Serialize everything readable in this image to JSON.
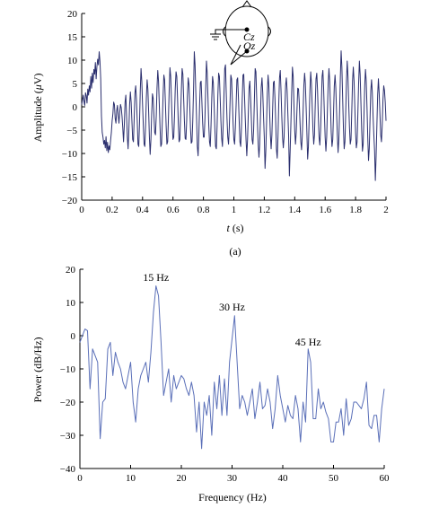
{
  "chart_data": [
    {
      "type": "line",
      "panel_label": "(a)",
      "xlabel_var": "t",
      "xlabel_unit": "(s)",
      "ylabel_text": "Amplitude (",
      "ylabel_mu": "μ",
      "ylabel_unit": "V)",
      "xlim": [
        0,
        2
      ],
      "ylim": [
        -20,
        20
      ],
      "xticks": [
        0,
        0.2,
        0.4,
        0.6,
        0.8,
        1,
        1.2,
        1.4,
        1.6,
        1.8,
        2
      ],
      "xtick_labels": [
        "0",
        "0.2",
        "0.4",
        "0.6",
        "0.8",
        "1",
        "1.2",
        "1.4",
        "1.6",
        "1.8",
        "2"
      ],
      "yticks": [
        -20,
        -15,
        -10,
        -5,
        0,
        5,
        10,
        15,
        20
      ],
      "ytick_labels": [
        "−20",
        "−15",
        "−10",
        "−5",
        "0",
        "5",
        "10",
        "15",
        "20"
      ],
      "grid": false,
      "line_color": "#2b2f6e",
      "inset": {
        "electrode_top": "Cz",
        "electrode_bottom": "Oz"
      },
      "x": [
        0.0,
        0.005,
        0.01,
        0.015,
        0.02,
        0.025,
        0.03,
        0.035,
        0.04,
        0.045,
        0.05,
        0.055,
        0.06,
        0.065,
        0.07,
        0.075,
        0.08,
        0.085,
        0.09,
        0.095,
        0.1,
        0.105,
        0.11,
        0.115,
        0.12,
        0.125,
        0.13,
        0.135,
        0.14,
        0.145,
        0.15,
        0.155,
        0.16,
        0.165,
        0.17,
        0.175,
        0.18,
        0.185,
        0.19,
        0.195,
        0.2,
        0.205,
        0.21,
        0.215,
        0.22,
        0.225,
        0.23,
        0.235,
        0.24,
        0.245,
        0.25,
        0.255,
        0.26,
        0.265,
        0.27,
        0.275,
        0.28,
        0.285,
        0.29,
        0.295,
        0.3,
        0.305,
        0.31,
        0.315,
        0.32,
        0.325,
        0.33,
        0.335,
        0.34,
        0.345,
        0.35,
        0.355,
        0.36,
        0.365,
        0.37,
        0.375,
        0.38,
        0.385,
        0.39,
        0.395,
        0.4,
        0.405,
        0.41,
        0.415,
        0.42,
        0.425,
        0.43,
        0.435,
        0.44,
        0.445,
        0.45,
        0.455,
        0.46,
        0.465,
        0.47,
        0.475,
        0.48,
        0.485,
        0.49,
        0.495,
        0.5,
        0.505,
        0.51,
        0.515,
        0.52,
        0.525,
        0.53,
        0.535,
        0.54,
        0.545,
        0.55,
        0.555,
        0.56,
        0.565,
        0.57,
        0.575,
        0.58,
        0.585,
        0.59,
        0.595,
        0.6,
        0.605,
        0.61,
        0.615,
        0.62,
        0.625,
        0.63,
        0.635,
        0.64,
        0.645,
        0.65,
        0.655,
        0.66,
        0.665,
        0.67,
        0.675,
        0.68,
        0.685,
        0.69,
        0.695,
        0.7,
        0.705,
        0.71,
        0.715,
        0.72,
        0.725,
        0.73,
        0.735,
        0.74,
        0.745,
        0.75,
        0.755,
        0.76,
        0.765,
        0.77,
        0.775,
        0.78,
        0.785,
        0.79,
        0.795,
        0.8,
        0.805,
        0.81,
        0.815,
        0.82,
        0.825,
        0.83,
        0.835,
        0.84,
        0.845,
        0.85,
        0.855,
        0.86,
        0.865,
        0.87,
        0.875,
        0.88,
        0.885,
        0.89,
        0.895,
        0.9,
        0.905,
        0.91,
        0.915,
        0.92,
        0.925,
        0.93,
        0.935,
        0.94,
        0.945,
        0.95,
        0.955,
        0.96,
        0.965,
        0.97,
        0.975,
        0.98,
        0.985,
        0.99,
        0.995,
        1.0,
        1.005,
        1.01,
        1.015,
        1.02,
        1.025,
        1.03,
        1.035,
        1.04,
        1.045,
        1.05,
        1.055,
        1.06,
        1.065,
        1.07,
        1.075,
        1.08,
        1.085,
        1.09,
        1.095,
        1.1,
        1.105,
        1.11,
        1.115,
        1.12,
        1.125,
        1.13,
        1.135,
        1.14,
        1.145,
        1.15,
        1.155,
        1.16,
        1.165,
        1.17,
        1.175,
        1.18,
        1.185,
        1.19,
        1.195,
        1.2,
        1.205,
        1.21,
        1.215,
        1.22,
        1.225,
        1.23,
        1.235,
        1.24,
        1.245,
        1.25,
        1.255,
        1.26,
        1.265,
        1.27,
        1.275,
        1.28,
        1.285,
        1.29,
        1.295,
        1.3,
        1.305,
        1.31,
        1.315,
        1.32,
        1.325,
        1.33,
        1.335,
        1.34,
        1.345,
        1.35,
        1.355,
        1.36,
        1.365,
        1.37,
        1.375,
        1.38,
        1.385,
        1.39,
        1.395,
        1.4,
        1.405,
        1.41,
        1.415,
        1.42,
        1.425,
        1.43,
        1.435,
        1.44,
        1.445,
        1.45,
        1.455,
        1.46,
        1.465,
        1.47,
        1.475,
        1.48,
        1.485,
        1.49,
        1.495,
        1.5,
        1.505,
        1.51,
        1.515,
        1.52,
        1.525,
        1.53,
        1.535,
        1.54,
        1.545,
        1.55,
        1.555,
        1.56,
        1.565,
        1.57,
        1.575,
        1.58,
        1.585,
        1.59,
        1.595,
        1.6,
        1.605,
        1.61,
        1.615,
        1.62,
        1.625,
        1.63,
        1.635,
        1.64,
        1.645,
        1.65,
        1.655,
        1.66,
        1.665,
        1.67,
        1.675,
        1.68,
        1.685,
        1.69,
        1.695,
        1.7,
        1.705,
        1.71,
        1.715,
        1.72,
        1.725,
        1.73,
        1.735,
        1.74,
        1.745,
        1.75,
        1.755,
        1.76,
        1.765,
        1.77,
        1.775,
        1.78,
        1.785,
        1.79,
        1.795,
        1.8,
        1.805,
        1.81,
        1.815,
        1.82,
        1.825,
        1.83,
        1.835,
        1.84,
        1.845,
        1.85,
        1.855,
        1.86,
        1.865,
        1.87,
        1.875,
        1.88,
        1.885,
        1.89,
        1.895,
        1.9,
        1.905,
        1.91,
        1.915,
        1.92,
        1.925,
        1.93,
        1.935,
        1.94,
        1.945,
        1.95,
        1.955,
        1.96,
        1.965,
        1.97,
        1.975,
        1.98,
        1.985,
        1.99,
        1.995,
        2.0
      ],
      "y": [
        0.5,
        1.5,
        2.5,
        1.2,
        0.3,
        3.0,
        2.4,
        0.8,
        3.8,
        2.5,
        4.5,
        3.2,
        6.5,
        4.0,
        7.2,
        5.2,
        8.0,
        7.0,
        9.5,
        6.0,
        8.6,
        10.2,
        9.0,
        11.8,
        9.8,
        6.0,
        -2.0,
        -5.5,
        -6.5,
        -8.0,
        -7.2,
        -8.8,
        -6.4,
        -9.4,
        -7.6,
        -9.8,
        -8.4,
        -9.2,
        -7.2,
        -5.5,
        -3.0,
        -1.5,
        1.0,
        0.5,
        -2.5,
        -3.5,
        -0.8,
        0.3,
        -1.8,
        -3.5,
        -1.2,
        0.5,
        -0.2,
        -2.0,
        -4.5,
        -7.5,
        -4.0,
        1.0,
        2.5,
        -2.0,
        -6.5,
        -9.0,
        -5.0,
        0.5,
        3.2,
        1.0,
        -3.0,
        -7.0,
        -7.5,
        -2.5,
        3.0,
        4.5,
        1.5,
        -3.0,
        -8.0,
        -8.5,
        -3.5,
        3.5,
        8.2,
        5.5,
        0.5,
        -4.0,
        -8.0,
        -8.5,
        -4.0,
        2.0,
        5.8,
        3.8,
        -1.0,
        -6.5,
        -10.2,
        -7.0,
        -1.5,
        2.8,
        1.8,
        -2.0,
        -5.5,
        -6.0,
        -2.0,
        4.0,
        7.8,
        5.5,
        0.5,
        -4.5,
        -8.5,
        -8.0,
        -3.0,
        2.5,
        6.8,
        5.8,
        1.0,
        -4.0,
        -8.0,
        -7.5,
        -2.5,
        3.5,
        8.4,
        6.5,
        1.5,
        -3.5,
        -7.0,
        -6.5,
        -2.0,
        4.0,
        7.5,
        6.5,
        1.8,
        -3.5,
        -7.5,
        -7.0,
        -2.0,
        3.5,
        8.2,
        7.0,
        2.0,
        -3.0,
        -6.8,
        -7.0,
        -3.0,
        2.5,
        6.2,
        4.8,
        0.5,
        -4.5,
        -7.8,
        -7.5,
        -3.0,
        3.5,
        11.8,
        9.0,
        3.0,
        -2.5,
        -8.5,
        -10.5,
        -6.0,
        0.5,
        5.2,
        5.5,
        1.0,
        -3.5,
        -6.5,
        -6.5,
        -2.5,
        4.0,
        9.8,
        7.2,
        1.8,
        -3.8,
        -7.5,
        -8.5,
        -4.0,
        2.0,
        6.5,
        5.2,
        0.8,
        -4.5,
        -8.5,
        -9.0,
        -4.0,
        2.5,
        7.2,
        6.5,
        2.0,
        -3.0,
        -6.8,
        -8.5,
        -3.8,
        2.5,
        8.2,
        9.0,
        3.0,
        -2.5,
        -6.5,
        -8.0,
        -4.5,
        1.0,
        6.8,
        6.0,
        1.5,
        -3.5,
        -7.0,
        -8.0,
        -4.5,
        0.5,
        5.8,
        6.2,
        2.0,
        -3.0,
        -7.5,
        -8.5,
        -4.5,
        1.5,
        6.8,
        7.0,
        2.5,
        -2.5,
        -7.0,
        -10.5,
        -7.0,
        -1.5,
        4.0,
        5.5,
        2.0,
        -2.5,
        -7.0,
        -8.0,
        -5.0,
        1.5,
        8.2,
        7.5,
        2.0,
        -3.5,
        -8.0,
        -10.8,
        -8.0,
        -2.0,
        4.2,
        6.2,
        3.0,
        -2.0,
        -6.5,
        -13.2,
        -9.5,
        -3.5,
        3.0,
        6.8,
        4.5,
        -1.0,
        -6.0,
        -9.0,
        -6.0,
        -0.5,
        5.2,
        5.5,
        2.0,
        -3.0,
        -9.2,
        -11.0,
        -6.5,
        0.5,
        6.2,
        7.8,
        3.5,
        -2.0,
        -6.5,
        -8.8,
        -6.5,
        -1.0,
        4.5,
        6.2,
        3.5,
        -1.5,
        -6.2,
        -14.8,
        -9.5,
        -3.5,
        3.0,
        8.5,
        6.5,
        0.5,
        -5.0,
        -8.0,
        -5.5,
        -0.5,
        4.0,
        3.8,
        0.8,
        -3.5,
        -7.5,
        -9.2,
        -6.0,
        -1.0,
        4.5,
        7.2,
        5.0,
        0.0,
        -5.5,
        -11.2,
        -8.5,
        -2.5,
        3.5,
        7.5,
        5.0,
        0.0,
        -5.0,
        -8.0,
        -6.0,
        0.5,
        6.0,
        7.2,
        3.5,
        -2.0,
        -6.5,
        -8.2,
        -5.0,
        0.5,
        6.5,
        7.8,
        4.0,
        -1.5,
        -6.5,
        -9.5,
        -6.5,
        -0.5,
        5.0,
        8.2,
        5.5,
        0.0,
        -5.5,
        -8.5,
        -7.0,
        -1.5,
        4.5,
        6.8,
        4.0,
        -1.0,
        -6.0,
        -9.8,
        -7.0,
        -1.0,
        6.5,
        12.0,
        8.5,
        2.0,
        -4.5,
        -9.0,
        -7.5,
        -1.5,
        5.5,
        9.8,
        6.5,
        0.5,
        -4.5,
        -8.0,
        -7.0,
        -1.0,
        5.5,
        8.5,
        5.5,
        0.0,
        -5.5,
        -8.8,
        -7.5,
        -1.5,
        5.0,
        9.8,
        7.0,
        1.0,
        -5.0,
        -9.5,
        -8.0,
        -2.0,
        4.5,
        8.0,
        5.5,
        0.0,
        -6.5,
        -11.5,
        -9.0,
        -2.5,
        3.5,
        5.8,
        3.0,
        -2.0,
        -6.0,
        -9.5,
        -15.8,
        -10.5,
        -4.0,
        2.5,
        6.0,
        3.0,
        -1.5,
        -6.0,
        -7.5,
        -4.0,
        1.5,
        4.5,
        3.5,
        1.0,
        -3.0
      ]
    },
    {
      "type": "line",
      "xlabel": "Frequency (Hz)",
      "ylabel": "Power (dB/Hz)",
      "xlim": [
        0,
        60
      ],
      "ylim": [
        -40,
        20
      ],
      "xticks": [
        0,
        10,
        20,
        30,
        40,
        50,
        60
      ],
      "xtick_labels": [
        "0",
        "10",
        "20",
        "30",
        "40",
        "50",
        "60"
      ],
      "yticks": [
        -40,
        -30,
        -20,
        -10,
        0,
        10,
        20
      ],
      "ytick_labels": [
        "−40",
        "−30",
        "−20",
        "−10",
        "0",
        "10",
        "20"
      ],
      "grid": false,
      "line_color": "#5a6fb8",
      "annotations": [
        {
          "text": "15 Hz",
          "x": 15,
          "y": 16
        },
        {
          "text": "30 Hz",
          "x": 30,
          "y": 7
        },
        {
          "text": "45 Hz",
          "x": 45,
          "y": -3.5
        }
      ],
      "x": [
        0,
        0.5,
        1,
        1.5,
        2,
        2.5,
        3,
        3.5,
        4,
        4.5,
        5,
        5.5,
        6,
        6.5,
        7,
        7.5,
        8,
        8.5,
        9,
        9.5,
        10,
        10.5,
        11,
        11.5,
        12,
        12.5,
        13,
        13.5,
        14,
        14.5,
        15,
        15.5,
        16,
        16.5,
        17,
        17.5,
        18,
        18.5,
        19,
        19.5,
        20,
        20.5,
        21,
        21.5,
        22,
        22.5,
        23,
        23.5,
        24,
        24.5,
        25,
        25.5,
        26,
        26.5,
        27,
        27.5,
        28,
        28.5,
        29,
        29.5,
        30,
        30.5,
        31,
        31.5,
        32,
        32.5,
        33,
        33.5,
        34,
        34.5,
        35,
        35.5,
        36,
        36.5,
        37,
        37.5,
        38,
        38.5,
        39,
        39.5,
        40,
        40.5,
        41,
        41.5,
        42,
        42.5,
        43,
        43.5,
        44,
        44.5,
        45,
        45.5,
        46,
        46.5,
        47,
        47.5,
        48,
        48.5,
        49,
        49.5,
        50,
        50.5,
        51,
        51.5,
        52,
        52.5,
        53,
        53.5,
        54,
        54.5,
        55,
        55.5,
        56,
        56.5,
        57,
        57.5,
        58,
        58.5,
        59,
        59.5,
        60
      ],
      "y": [
        -2,
        0,
        2,
        1.5,
        -16,
        -4,
        -6,
        -8,
        -31,
        -20,
        -19,
        -4,
        -2,
        -12,
        -5,
        -8,
        -10,
        -14,
        -16,
        -12,
        -8,
        -20,
        -26,
        -16,
        -12,
        -10,
        -8,
        -14,
        -5,
        7,
        15,
        12,
        -2,
        -18,
        -14,
        -10,
        -20,
        -12,
        -16,
        -14,
        -12,
        -13,
        -16,
        -18,
        -14,
        -18,
        -29,
        -20,
        -34,
        -20,
        -24,
        -18,
        -30,
        -14,
        -22,
        -12,
        -24,
        -13,
        -24,
        -8,
        -1,
        6,
        -8,
        -22,
        -18,
        -20,
        -24,
        -20,
        -16,
        -25,
        -20,
        -14,
        -22,
        -21,
        -16,
        -20,
        -28,
        -22,
        -12,
        -18,
        -22,
        -26,
        -21,
        -24,
        -25,
        -18,
        -22,
        -32,
        -20,
        -26,
        -4,
        -8,
        -25,
        -25,
        -16,
        -22,
        -20,
        -23,
        -25,
        -32,
        -32,
        -26,
        -26,
        -22,
        -30,
        -19,
        -27,
        -25,
        -20,
        -20,
        -21,
        -22,
        -19,
        -14,
        -27,
        -28,
        -24,
        -24,
        -32,
        -22,
        -16
      ]
    }
  ]
}
